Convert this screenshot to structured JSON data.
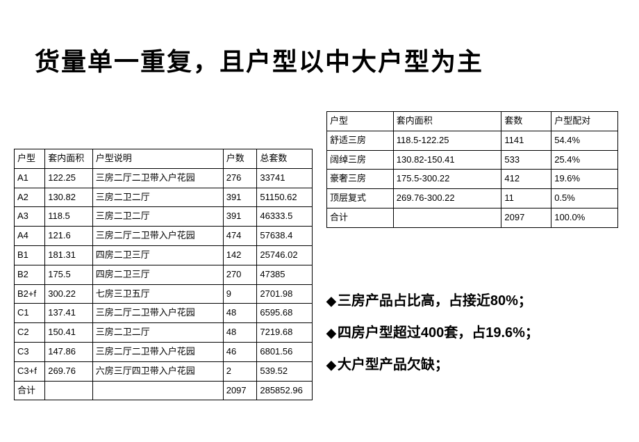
{
  "title": "货量单一重复，且户型以中大户型为主",
  "table1": {
    "headers": [
      "户型",
      "套内面积",
      "户型说明",
      "户数",
      "总套数"
    ],
    "rows": [
      [
        "A1",
        "122.25",
        "三房二厅二卫带入户花园",
        "276",
        "33741"
      ],
      [
        "A2",
        "130.82",
        "三房二卫二厅",
        "391",
        "51150.62"
      ],
      [
        "A3",
        "118.5",
        "三房二卫二厅",
        "391",
        "46333.5"
      ],
      [
        "A4",
        "121.6",
        "三房二厅二卫带入户花园",
        "474",
        "57638.4"
      ],
      [
        "B1",
        "181.31",
        "四房二卫三厅",
        "142",
        "25746.02"
      ],
      [
        "B2",
        "175.5",
        "四房二卫三厅",
        "270",
        "47385"
      ],
      [
        "B2+f",
        "300.22",
        "七房三卫五厅",
        "9",
        "2701.98"
      ],
      [
        "C1",
        "137.41",
        "三房二厅二卫带入户花园",
        "48",
        "6595.68"
      ],
      [
        "C2",
        "150.41",
        "三房二卫二厅",
        "48",
        "7219.68"
      ],
      [
        "C3",
        "147.86",
        "三房二厅二卫带入户花园",
        "46",
        "6801.56"
      ],
      [
        "C3+f",
        "269.76",
        "六房三厅四卫带入户花园",
        "2",
        "539.52"
      ],
      [
        "合计",
        "",
        "",
        "2097",
        "285852.96"
      ]
    ]
  },
  "table2": {
    "headers": [
      "户型",
      "套内面积",
      "套数",
      "户型配对"
    ],
    "rows": [
      [
        "舒适三房",
        "118.5-122.25",
        "1141",
        "54.4%"
      ],
      [
        "阔绰三房",
        "130.82-150.41",
        "533",
        "25.4%"
      ],
      [
        "豪奢三房",
        "175.5-300.22",
        "412",
        "19.6%"
      ],
      [
        "顶层复式",
        "269.76-300.22",
        "11",
        "0.5%"
      ],
      [
        "合计",
        "",
        "2097",
        "100.0%"
      ]
    ]
  },
  "bullets": [
    "三房产品占比高，占接近80%；",
    "四房户型超过400套，占19.6%；",
    "大户型产品欠缺；"
  ]
}
